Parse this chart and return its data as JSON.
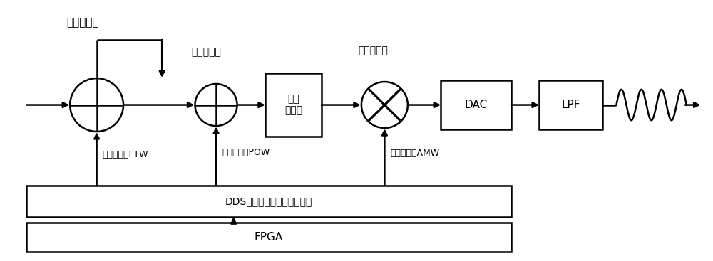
{
  "bg_color": "#ffffff",
  "line_color": "#000000",
  "label_phase_acc": "相位累加器",
  "label_phase_offset": "相位偏置器",
  "label_amplitude_mod": "幅度调制器",
  "label_amplitude_conv": "幅度\n转换器",
  "label_dac": "DAC",
  "label_lpf": "LPF",
  "label_dds_reg": "DDS频率，相位，幅度寄存器",
  "label_fpga": "FPGA",
  "label_ftw": "频率调谐字FTW",
  "label_pow": "相位调谐字POW",
  "label_amw": "幅度控制字AMW",
  "fig_width": 10.0,
  "fig_height": 3.67,
  "dpi": 100
}
